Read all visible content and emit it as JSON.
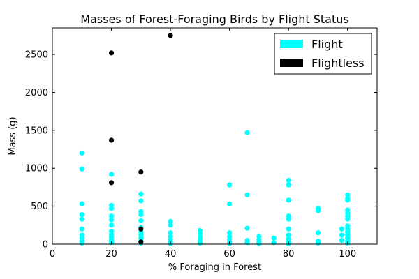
{
  "chart_data": {
    "type": "scatter",
    "title": "Masses of Forest-Foraging Birds by Flight Status",
    "xlabel": "% Foraging in Forest",
    "ylabel": "Mass (g)",
    "xlim": [
      0,
      110
    ],
    "ylim": [
      0,
      2850
    ],
    "xticks": [
      0,
      20,
      40,
      60,
      80,
      100
    ],
    "yticks": [
      0,
      500,
      1000,
      1500,
      2000,
      2500
    ],
    "grid": false,
    "legend": "top-right",
    "series": [
      {
        "name": "Flight",
        "color": "#00ffff",
        "points": [
          [
            10,
            1200
          ],
          [
            10,
            990
          ],
          [
            10,
            530
          ],
          [
            10,
            390
          ],
          [
            10,
            330
          ],
          [
            10,
            200
          ],
          [
            10,
            120
          ],
          [
            10,
            80
          ],
          [
            10,
            40
          ],
          [
            10,
            15
          ],
          [
            20,
            920
          ],
          [
            20,
            510
          ],
          [
            20,
            470
          ],
          [
            20,
            370
          ],
          [
            20,
            320
          ],
          [
            20,
            250
          ],
          [
            20,
            170
          ],
          [
            20,
            130
          ],
          [
            20,
            90
          ],
          [
            20,
            50
          ],
          [
            20,
            20
          ],
          [
            30,
            660
          ],
          [
            30,
            570
          ],
          [
            30,
            430
          ],
          [
            30,
            390
          ],
          [
            30,
            310
          ],
          [
            30,
            220
          ],
          [
            30,
            160
          ],
          [
            30,
            120
          ],
          [
            30,
            80
          ],
          [
            30,
            40
          ],
          [
            30,
            15
          ],
          [
            40,
            300
          ],
          [
            40,
            250
          ],
          [
            40,
            150
          ],
          [
            40,
            100
          ],
          [
            40,
            60
          ],
          [
            40,
            30
          ],
          [
            40,
            10
          ],
          [
            50,
            180
          ],
          [
            50,
            140
          ],
          [
            50,
            100
          ],
          [
            50,
            70
          ],
          [
            50,
            40
          ],
          [
            50,
            15
          ],
          [
            60,
            780
          ],
          [
            60,
            530
          ],
          [
            60,
            150
          ],
          [
            60,
            100
          ],
          [
            60,
            60
          ],
          [
            60,
            30
          ],
          [
            60,
            10
          ],
          [
            66,
            1470
          ],
          [
            66,
            650
          ],
          [
            66,
            210
          ],
          [
            66,
            50
          ],
          [
            66,
            20
          ],
          [
            70,
            100
          ],
          [
            70,
            60
          ],
          [
            70,
            30
          ],
          [
            70,
            10
          ],
          [
            75,
            80
          ],
          [
            75,
            20
          ],
          [
            80,
            840
          ],
          [
            80,
            780
          ],
          [
            80,
            580
          ],
          [
            80,
            370
          ],
          [
            80,
            330
          ],
          [
            80,
            200
          ],
          [
            80,
            120
          ],
          [
            80,
            70
          ],
          [
            80,
            30
          ],
          [
            80,
            10
          ],
          [
            90,
            470
          ],
          [
            90,
            440
          ],
          [
            90,
            150
          ],
          [
            90,
            40
          ],
          [
            90,
            15
          ],
          [
            98,
            200
          ],
          [
            98,
            120
          ],
          [
            98,
            50
          ],
          [
            100,
            650
          ],
          [
            100,
            600
          ],
          [
            100,
            580
          ],
          [
            100,
            450
          ],
          [
            100,
            410
          ],
          [
            100,
            370
          ],
          [
            100,
            330
          ],
          [
            100,
            240
          ],
          [
            100,
            200
          ],
          [
            100,
            160
          ],
          [
            100,
            120
          ],
          [
            100,
            80
          ],
          [
            100,
            40
          ],
          [
            100,
            15
          ]
        ]
      },
      {
        "name": "Flightless",
        "color": "#000000",
        "points": [
          [
            20,
            2520
          ],
          [
            20,
            1370
          ],
          [
            20,
            810
          ],
          [
            30,
            950
          ],
          [
            30,
            200
          ],
          [
            30,
            30
          ],
          [
            40,
            2750
          ]
        ]
      }
    ]
  }
}
